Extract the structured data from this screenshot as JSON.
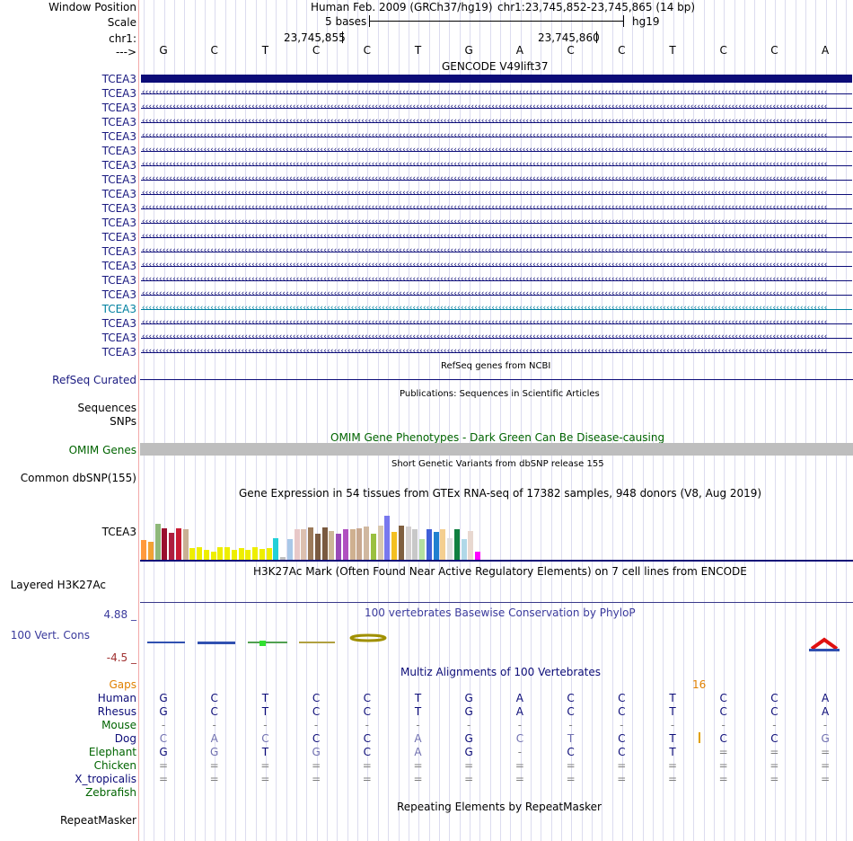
{
  "header": {
    "window_position_label": "Window Position",
    "assembly": "Human Feb. 2009 (GRCh37/hg19)",
    "position": "chr1:23,745,852-23,745,865 (14 bp)",
    "scale_label": "Scale",
    "scale_text": "5 bases",
    "scale_db": "hg19",
    "chrom_label": "chr1:",
    "coord1": "23,745,855",
    "coord2": "23,745,860",
    "strand_label": "--->",
    "bases": [
      "G",
      "C",
      "T",
      "C",
      "C",
      "T",
      "G",
      "A",
      "C",
      "C",
      "T",
      "C",
      "C",
      "A"
    ]
  },
  "colors": {
    "navy": "#0c0c78",
    "olive": "#006400",
    "orange": "#e08000",
    "teal": "#0080a0"
  },
  "gencode": {
    "title": "GENCODE V49lift37",
    "rows": [
      "TCEA3",
      "TCEA3",
      "TCEA3",
      "TCEA3",
      "TCEA3",
      "TCEA3",
      "TCEA3",
      "TCEA3",
      "TCEA3",
      "TCEA3",
      "TCEA3",
      "TCEA3",
      "TCEA3",
      "TCEA3",
      "TCEA3",
      "TCEA3",
      "TCEA3",
      "TCEA3",
      "TCEA3",
      "TCEA3"
    ]
  },
  "refseq": {
    "title": "RefSeq genes from NCBI",
    "label": "RefSeq Curated"
  },
  "publications": {
    "title": "Publications: Sequences in Scientific Articles",
    "label1": "Sequences",
    "label2": "SNPs"
  },
  "omim": {
    "title": "OMIM Gene Phenotypes - Dark Green Can Be Disease-causing",
    "label": "OMIM Genes"
  },
  "dbsnp": {
    "title": "Short Genetic Variants from dbSNP release 155",
    "label": "Common dbSNP(155)"
  },
  "gtex": {
    "title": "Gene Expression in 54 tissues from GTEx RNA-seq of 17382 samples, 948 donors (V8, Aug 2019)",
    "label": "TCEA3",
    "bars": [
      {
        "v": 0.33,
        "c": "#ff9a3d"
      },
      {
        "v": 0.3,
        "c": "#f2a234"
      },
      {
        "v": 0.6,
        "c": "#8fb87a"
      },
      {
        "v": 0.52,
        "c": "#9a0f2e"
      },
      {
        "v": 0.45,
        "c": "#ad1f3f"
      },
      {
        "v": 0.52,
        "c": "#c81c34"
      },
      {
        "v": 0.5,
        "c": "#c9b094"
      },
      {
        "v": 0.19,
        "c": "#eeee00"
      },
      {
        "v": 0.21,
        "c": "#eeee00"
      },
      {
        "v": 0.16,
        "c": "#eeee00"
      },
      {
        "v": 0.14,
        "c": "#eeee00"
      },
      {
        "v": 0.21,
        "c": "#eeee00"
      },
      {
        "v": 0.21,
        "c": "#eeee00"
      },
      {
        "v": 0.17,
        "c": "#eeee00"
      },
      {
        "v": 0.2,
        "c": "#eeee00"
      },
      {
        "v": 0.17,
        "c": "#eeee00"
      },
      {
        "v": 0.21,
        "c": "#eeee00"
      },
      {
        "v": 0.18,
        "c": "#eeee00"
      },
      {
        "v": 0.2,
        "c": "#eeee00"
      },
      {
        "v": 0.36,
        "c": "#22d0d8"
      },
      {
        "v": 0.05,
        "c": "#c0c0c0"
      },
      {
        "v": 0.34,
        "c": "#a9c8e8"
      },
      {
        "v": 0.5,
        "c": "#e8c8c8"
      },
      {
        "v": 0.5,
        "c": "#dcc0b0"
      },
      {
        "v": 0.53,
        "c": "#9c7a5a"
      },
      {
        "v": 0.43,
        "c": "#7a5a40"
      },
      {
        "v": 0.53,
        "c": "#7a5a40"
      },
      {
        "v": 0.48,
        "c": "#ccb898"
      },
      {
        "v": 0.44,
        "c": "#9a4ab8"
      },
      {
        "v": 0.5,
        "c": "#b050c0"
      },
      {
        "v": 0.5,
        "c": "#cfb090"
      },
      {
        "v": 0.52,
        "c": "#c8a890"
      },
      {
        "v": 0.55,
        "c": "#d0b8a0"
      },
      {
        "v": 0.43,
        "c": "#9ac040"
      },
      {
        "v": 0.57,
        "c": "#d8c8b0"
      },
      {
        "v": 0.73,
        "c": "#7878ee"
      },
      {
        "v": 0.47,
        "c": "#f4c020"
      },
      {
        "v": 0.57,
        "c": "#806040"
      },
      {
        "v": 0.55,
        "c": "#d4d0d0"
      },
      {
        "v": 0.5,
        "c": "#c8c8c8"
      },
      {
        "v": 0.34,
        "c": "#b4e0a0"
      },
      {
        "v": 0.5,
        "c": "#4060d8"
      },
      {
        "v": 0.47,
        "c": "#2080d0"
      },
      {
        "v": 0.5,
        "c": "#f4cf90"
      },
      {
        "v": 0.36,
        "c": "#e0e0e0"
      },
      {
        "v": 0.5,
        "c": "#108040"
      },
      {
        "v": 0.34,
        "c": "#b0d8e8"
      },
      {
        "v": 0.48,
        "c": "#e8d8d0"
      },
      {
        "v": 0.14,
        "c": "#ff00ff"
      }
    ]
  },
  "h3k27ac": {
    "title": "H3K27Ac Mark (Often Found Near Active Regulatory Elements) on 7 cell lines from ENCODE",
    "label": "Layered H3K27Ac"
  },
  "phylop": {
    "title": "100 vertebrates Basewise Conservation by PhyloP",
    "label": "100 Vert. Cons",
    "max": "4.88 _",
    "min": "-4.5 _"
  },
  "multiz": {
    "title": "Multiz Alignments of 100 Vertebrates",
    "gaps_label": "Gaps",
    "gaps_value": "16",
    "species": [
      {
        "name": "Human",
        "bases": [
          "G",
          "C",
          "T",
          "C",
          "C",
          "T",
          "G",
          "A",
          "C",
          "C",
          "T",
          "C",
          "C",
          "A"
        ]
      },
      {
        "name": "Rhesus",
        "bases": [
          "G",
          "C",
          "T",
          "C",
          "C",
          "T",
          "G",
          "A",
          "C",
          "C",
          "T",
          "C",
          "C",
          "A"
        ]
      },
      {
        "name": "Mouse",
        "bases": [
          "-",
          "-",
          "-",
          "-",
          "-",
          "-",
          "-",
          "-",
          "-",
          "-",
          "-",
          "-",
          "-",
          "-"
        ]
      },
      {
        "name": "Dog",
        "bases": [
          "C",
          "A",
          "C",
          "C",
          "C",
          "A",
          "G",
          "C",
          "T",
          "C",
          "T",
          "C",
          "C",
          "G"
        ]
      },
      {
        "name": "Elephant",
        "bases": [
          "G",
          "G",
          "T",
          "G",
          "C",
          "A",
          "G",
          "-",
          "C",
          "C",
          "T",
          "=",
          "=",
          "="
        ]
      },
      {
        "name": "Chicken",
        "bases": [
          "=",
          "=",
          "=",
          "=",
          "=",
          "=",
          "=",
          "=",
          "=",
          "=",
          "=",
          "=",
          "=",
          "="
        ]
      },
      {
        "name": "X_tropicalis",
        "bases": [
          "=",
          "=",
          "=",
          "=",
          "=",
          "=",
          "=",
          "=",
          "=",
          "=",
          "=",
          "=",
          "=",
          "="
        ]
      },
      {
        "name": "Zebrafish",
        "bases": [
          "",
          "",
          "",
          "",
          "",
          "",
          "",
          "",
          "",
          "",
          "",
          "",
          "",
          ""
        ]
      }
    ]
  },
  "repeatmasker": {
    "title": "Repeating Elements by RepeatMasker",
    "label": "RepeatMasker"
  }
}
